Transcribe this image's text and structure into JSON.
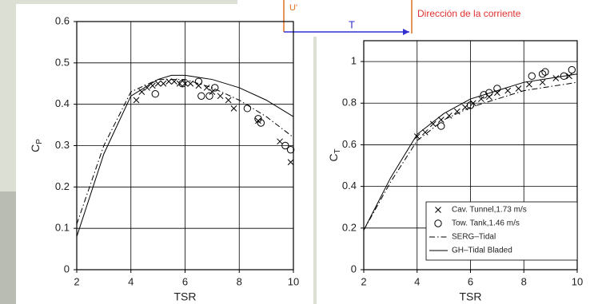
{
  "diagram": {
    "velocity_label": "U'",
    "thrust_label": "T",
    "flow_label": "Dirección de la corriente"
  },
  "chart_data": [
    {
      "type": "line",
      "x_label": "TSR",
      "y_label": "C",
      "y_label_sub": "P",
      "xlim": [
        2,
        10
      ],
      "xticks": [
        2,
        4,
        6,
        8,
        10
      ],
      "ylim": [
        0,
        0.6
      ],
      "yticks": [
        0,
        0.1,
        0.2,
        0.3,
        0.4,
        0.5,
        0.6
      ],
      "grid": true,
      "series": [
        {
          "name": "Cav. Tunnel,1.73 m/s",
          "color": "#000000",
          "style": "cross",
          "x": [
            4.2,
            4.4,
            4.6,
            4.8,
            5.0,
            5.2,
            5.4,
            5.6,
            5.8,
            6.0,
            6.2,
            6.5,
            6.8,
            7.0,
            7.3,
            7.6,
            7.8,
            8.7,
            9.5,
            9.9
          ],
          "values": [
            0.41,
            0.43,
            0.44,
            0.445,
            0.45,
            0.45,
            0.455,
            0.455,
            0.45,
            0.45,
            0.45,
            0.445,
            0.44,
            0.43,
            0.42,
            0.41,
            0.39,
            0.36,
            0.31,
            0.26
          ]
        },
        {
          "name": "Tow. Tank,1.46 m/s",
          "color": "#000000",
          "style": "circle",
          "x": [
            4.9,
            5.9,
            6.5,
            6.6,
            6.9,
            7.1,
            8.3,
            8.7,
            8.8,
            9.7,
            9.9
          ],
          "values": [
            0.425,
            0.45,
            0.455,
            0.42,
            0.42,
            0.44,
            0.39,
            0.365,
            0.355,
            0.3,
            0.29
          ]
        },
        {
          "name": "SERG–Tidal",
          "color": "#000000",
          "style": "dashdot",
          "x": [
            2,
            3,
            4,
            5,
            6,
            7,
            8,
            9,
            10
          ],
          "values": [
            0.11,
            0.3,
            0.43,
            0.46,
            0.46,
            0.44,
            0.41,
            0.37,
            0.32
          ]
        },
        {
          "name": "GH–Tidal Bladed",
          "color": "#000000",
          "style": "solid",
          "x": [
            2,
            3,
            4,
            5,
            5.5,
            6,
            7,
            8,
            9,
            10
          ],
          "values": [
            0.08,
            0.28,
            0.42,
            0.46,
            0.47,
            0.47,
            0.46,
            0.44,
            0.41,
            0.37
          ]
        }
      ]
    },
    {
      "type": "line",
      "x_label": "TSR",
      "y_label": "C",
      "y_label_sub": "T",
      "xlim": [
        2,
        10
      ],
      "xticks": [
        2,
        4,
        6,
        8,
        10
      ],
      "ylim": [
        0,
        1.1
      ],
      "yticks": [
        0,
        0.2,
        0.4,
        0.6,
        0.8,
        1
      ],
      "grid": true,
      "legend": "lower right",
      "series": [
        {
          "name": "Cav. Tunnel,1.73 m/s",
          "color": "#000000",
          "style": "cross",
          "x": [
            4.0,
            4.3,
            4.6,
            4.9,
            5.2,
            5.5,
            5.8,
            6.1,
            6.4,
            6.7,
            7.0,
            7.4,
            7.8,
            8.2,
            8.7,
            9.2,
            9.7
          ],
          "values": [
            0.64,
            0.66,
            0.7,
            0.72,
            0.74,
            0.76,
            0.78,
            0.8,
            0.82,
            0.83,
            0.85,
            0.86,
            0.87,
            0.89,
            0.9,
            0.92,
            0.93
          ]
        },
        {
          "name": "Tow. Tank,1.46 m/s",
          "color": "#000000",
          "style": "circle",
          "x": [
            4.9,
            6.0,
            6.5,
            6.7,
            7.0,
            8.3,
            8.7,
            8.8,
            9.5,
            9.8
          ],
          "values": [
            0.69,
            0.79,
            0.84,
            0.85,
            0.87,
            0.93,
            0.94,
            0.95,
            0.93,
            0.96
          ]
        },
        {
          "name": "SERG–Tidal",
          "color": "#000000",
          "style": "dashdot",
          "x": [
            2,
            3,
            4,
            5,
            6,
            7,
            8,
            9,
            10
          ],
          "values": [
            0.19,
            0.42,
            0.62,
            0.72,
            0.78,
            0.82,
            0.86,
            0.88,
            0.9
          ]
        },
        {
          "name": "GH–Tidal Bladed",
          "color": "#000000",
          "style": "solid",
          "x": [
            2,
            3,
            4,
            5,
            6,
            7,
            8,
            9,
            10
          ],
          "values": [
            0.19,
            0.44,
            0.65,
            0.75,
            0.82,
            0.86,
            0.9,
            0.92,
            0.94
          ]
        }
      ]
    }
  ]
}
